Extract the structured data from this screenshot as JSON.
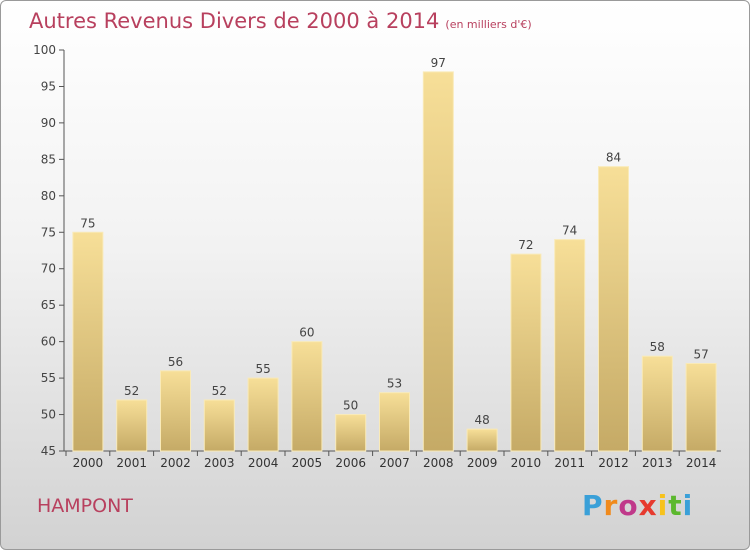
{
  "header": {
    "title": "Autres Revenus Divers de 2000 à 2014",
    "unit": "(en milliers d'€)"
  },
  "commune": "HAMPONT",
  "logo": {
    "text": "Proxiti",
    "colors": [
      "#3aa0d8",
      "#f08a1c",
      "#c0398a",
      "#e63a2e",
      "#f7c21c",
      "#5cb82e",
      "#3aa0d8"
    ]
  },
  "colors": {
    "title": "#b8405e",
    "bar_light": "#f6dd96",
    "bar_dark": "#c7ad6a",
    "axis": "#444444"
  },
  "chart_data": {
    "type": "bar",
    "title": "Autres Revenus Divers de 2000 à 2014",
    "subtitle": "(en milliers d'€)",
    "xlabel": "",
    "ylabel": "",
    "categories": [
      "2000",
      "2001",
      "2002",
      "2003",
      "2004",
      "2005",
      "2006",
      "2007",
      "2008",
      "2009",
      "2010",
      "2011",
      "2012",
      "2013",
      "2014"
    ],
    "values": [
      75,
      52,
      56,
      52,
      55,
      60,
      50,
      53,
      97,
      48,
      72,
      74,
      84,
      58,
      57
    ],
    "ylim": [
      45,
      100
    ],
    "yticks": [
      45,
      50,
      55,
      60,
      65,
      70,
      75,
      80,
      85,
      90,
      95,
      100
    ],
    "grid": false,
    "data_labels": true
  }
}
